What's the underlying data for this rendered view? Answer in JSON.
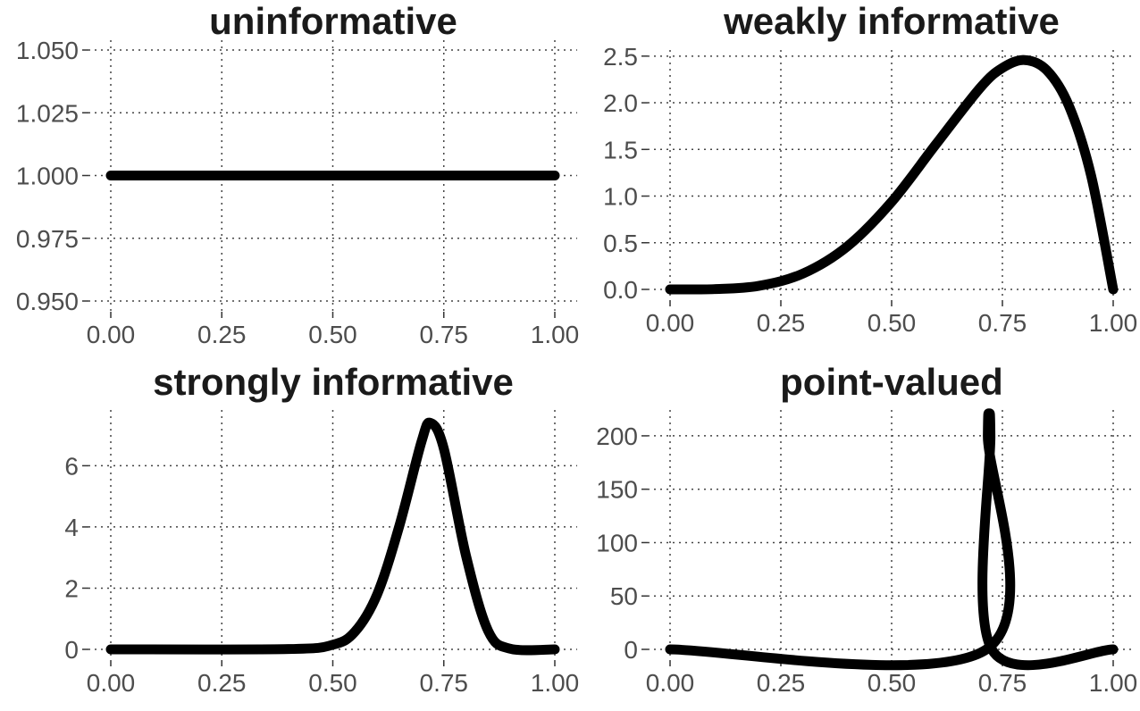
{
  "style": {
    "line_color": "#000000",
    "text_color": "#1a1a1a",
    "tick_color": "#4d4d4d",
    "grid_color": "#444444",
    "background": "#ffffff"
  },
  "chart_data": [
    {
      "id": "uninformative",
      "type": "line",
      "title": "uninformative",
      "xlabel": "",
      "ylabel": "",
      "xlim": [
        0,
        1
      ],
      "ylim": [
        0.95,
        1.05
      ],
      "grid": true,
      "grid_style": "dotted",
      "xticks": [
        0,
        0.25,
        0.5,
        0.75,
        1
      ],
      "xtick_labels": [
        "0.00",
        "0.25",
        "0.50",
        "0.75",
        "1.00"
      ],
      "yticks": [
        0.95,
        0.975,
        1.0,
        1.025,
        1.05
      ],
      "ytick_labels": [
        "0.950",
        "0.975",
        "1.000",
        "1.025",
        "1.050"
      ],
      "distribution": "uniform",
      "series": [
        {
          "x": [
            0,
            1
          ],
          "y": [
            1,
            1
          ]
        }
      ]
    },
    {
      "id": "weakly-informative",
      "type": "line",
      "title": "weakly informative",
      "xlabel": "",
      "ylabel": "",
      "xlim": [
        0,
        1
      ],
      "ylim": [
        0,
        2.46
      ],
      "grid": true,
      "grid_style": "dotted",
      "xticks": [
        0,
        0.25,
        0.5,
        0.75,
        1
      ],
      "xtick_labels": [
        "0.00",
        "0.25",
        "0.50",
        "0.75",
        "1.00"
      ],
      "yticks": [
        0,
        0.5,
        1,
        1.5,
        2,
        2.5
      ],
      "ytick_labels": [
        "0.0",
        "0.5",
        "1.0",
        "1.5",
        "2.0",
        "2.5"
      ],
      "distribution": "beta(5, 2)",
      "series": [
        {
          "x": [
            0,
            0.1,
            0.2,
            0.3,
            0.4,
            0.5,
            0.6,
            0.7,
            0.75,
            0.8,
            0.85,
            0.9,
            0.95,
            1
          ],
          "y": [
            0,
            0.003,
            0.038,
            0.17,
            0.461,
            0.938,
            1.555,
            2.161,
            2.373,
            2.458,
            2.349,
            1.968,
            1.222,
            0
          ]
        }
      ]
    },
    {
      "id": "strongly-informative",
      "type": "line",
      "title": "strongly informative",
      "xlabel": "",
      "ylabel": "",
      "xlim": [
        0,
        1
      ],
      "ylim": [
        0,
        7.5
      ],
      "grid": true,
      "grid_style": "dotted",
      "xticks": [
        0,
        0.25,
        0.5,
        0.75,
        1
      ],
      "xtick_labels": [
        "0.00",
        "0.25",
        "0.50",
        "0.75",
        "1.00"
      ],
      "yticks": [
        0,
        2,
        4,
        6
      ],
      "ytick_labels": [
        "0",
        "2",
        "4",
        "6"
      ],
      "distribution": "beta(37, 15)",
      "series": [
        {
          "x": [
            0,
            0.4,
            0.5,
            0.55,
            0.6,
            0.65,
            0.7,
            0.72,
            0.75,
            0.8,
            0.85,
            0.9,
            1
          ],
          "y": [
            0,
            0.01,
            0.15,
            0.58,
            1.8,
            4.04,
            6.8,
            7.4,
            6.56,
            3.06,
            0.6,
            0.02,
            0
          ]
        }
      ]
    },
    {
      "id": "point-valued",
      "type": "line",
      "title": "point-valued",
      "xlabel": "",
      "ylabel": "",
      "xlim": [
        0,
        1
      ],
      "ylim": [
        0,
        215
      ],
      "grid": true,
      "grid_style": "dotted",
      "xticks": [
        0,
        0.25,
        0.5,
        0.75,
        1
      ],
      "xtick_labels": [
        "0.00",
        "0.25",
        "0.50",
        "0.75",
        "1.00"
      ],
      "yticks": [
        0,
        50,
        100,
        150,
        200
      ],
      "ytick_labels": [
        "0",
        "50",
        "100",
        "150",
        "200"
      ],
      "distribution": "spike at 0.72",
      "series": [
        {
          "x": [
            0,
            0.714,
            0.717,
            0.72,
            0.723,
            0.726,
            1
          ],
          "y": [
            0,
            0,
            200,
            215,
            200,
            0,
            0
          ]
        }
      ]
    }
  ]
}
